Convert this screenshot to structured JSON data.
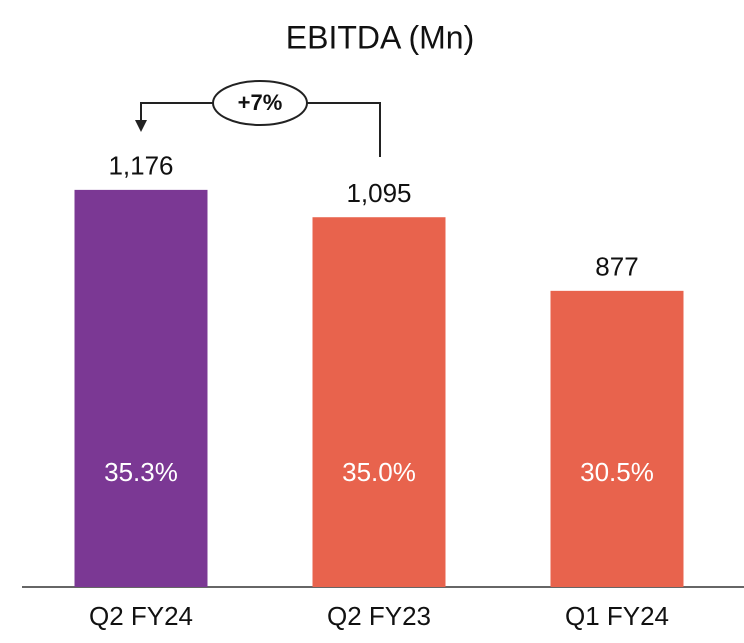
{
  "chart_data": {
    "type": "bar",
    "title": "EBITDA (Mn)",
    "categories": [
      "Q2 FY24",
      "Q2 FY23",
      "Q1 FY24"
    ],
    "values": [
      1176,
      1095,
      877
    ],
    "value_labels": [
      "1,176",
      "1,095",
      "877"
    ],
    "margin_labels": [
      "35.3%",
      "35.0%",
      "30.5%"
    ],
    "colors": [
      "#7b3894",
      "#e8634d",
      "#e8634d"
    ],
    "annotation": "+7%",
    "ylim": [
      0,
      1300
    ]
  }
}
